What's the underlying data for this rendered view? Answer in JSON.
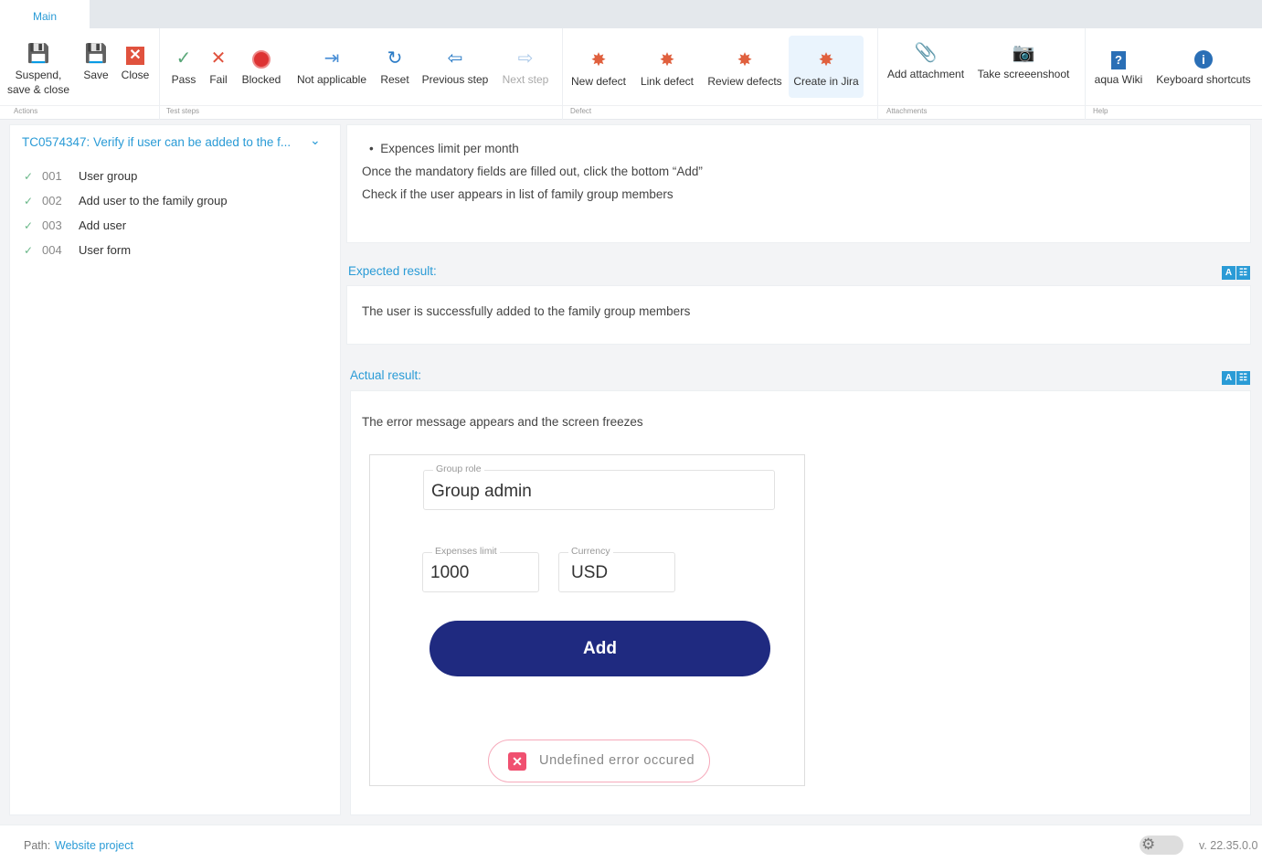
{
  "tabs": [
    {
      "label": "Main",
      "active": true
    }
  ],
  "ribbon": {
    "groups": [
      "Actions",
      "Test steps",
      "Defect",
      "Attachments",
      "Help"
    ],
    "actions": {
      "suspend": "Suspend,\nsave & close",
      "suspend_l1": "Suspend,",
      "suspend_l2": "save & close",
      "save": "Save",
      "close": "Close"
    },
    "steps": {
      "pass": "Pass",
      "fail": "Fail",
      "blocked": "Blocked",
      "na": "Not applicable",
      "reset": "Reset",
      "prev": "Previous step",
      "next": "Next step"
    },
    "defect": {
      "new": "New defect",
      "link": "Link defect",
      "review": "Review defects",
      "jira": "Create in Jira"
    },
    "attachments": {
      "add": "Add attachment",
      "screenshot": "Take screeenshoot"
    },
    "help": {
      "wiki": "aqua Wiki",
      "shortcuts": "Keyboard shortcuts"
    }
  },
  "testcase": {
    "title": "TC0574347: Verify if user can be added to the f...",
    "steps": [
      {
        "num": "001",
        "label": "User group",
        "status": "passed"
      },
      {
        "num": "002",
        "label": "Add user to the family group",
        "status": "passed"
      },
      {
        "num": "003",
        "label": "Add user",
        "status": "passed"
      },
      {
        "num": "004",
        "label": "User form",
        "status": "passed"
      }
    ]
  },
  "description": {
    "bullet": "Expences limit per month",
    "line1": "Once the mandatory fields are filled out, click the bottom “Add”",
    "line2": "Check if the user appears in list of family group members"
  },
  "expected": {
    "label": "Expected result:",
    "text": "The user is successfully added to the family group members"
  },
  "actual": {
    "label": "Actual result:",
    "text": "The error message appears and the screen freezes",
    "screenshot": {
      "group_role_label": "Group role",
      "group_role": "Group admin",
      "expenses_label": "Expenses limit",
      "expenses": "1000",
      "currency_label": "Currency",
      "currency": "USD",
      "add_button": "Add",
      "error": "Undefined error occured"
    }
  },
  "footer": {
    "path_label": "Path:",
    "path": "Website project",
    "version": "v. 22.35.0.0"
  },
  "colors": {
    "accent": "#2a9bd6",
    "add_button": "#1f2a80",
    "error": "#f06580"
  }
}
